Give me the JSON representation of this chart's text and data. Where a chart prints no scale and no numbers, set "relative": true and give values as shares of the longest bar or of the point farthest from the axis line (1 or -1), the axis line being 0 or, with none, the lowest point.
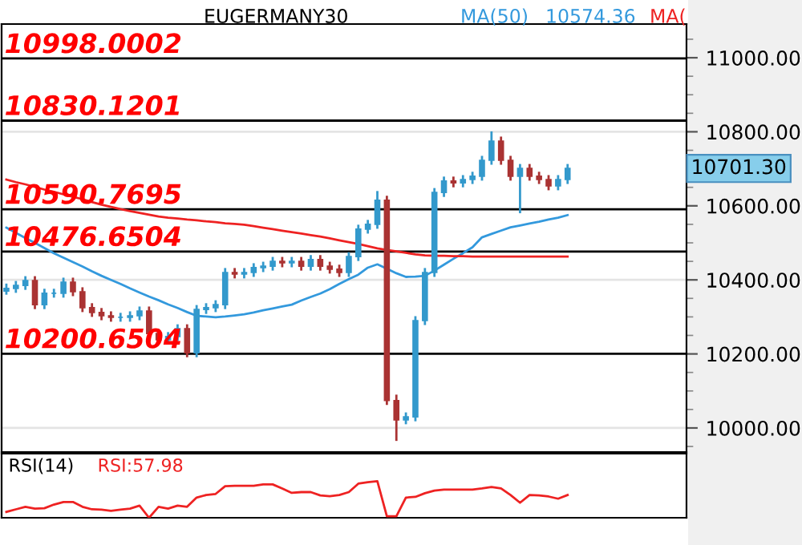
{
  "chart_data": [
    {
      "type": "candlestick",
      "title": "EUGERMANY30",
      "categories": [
        null,
        null,
        null,
        null,
        null,
        null,
        null,
        null,
        null,
        null,
        null,
        null,
        null,
        null,
        null,
        null,
        null,
        null,
        null,
        null,
        null,
        null,
        null,
        null,
        null,
        null,
        null,
        null,
        null,
        null,
        null,
        null,
        null,
        null,
        null,
        null,
        null,
        null,
        null,
        null,
        null,
        null,
        null,
        null,
        null,
        null,
        null,
        null,
        null,
        null,
        null,
        null,
        null,
        null,
        null,
        null,
        null,
        null,
        null,
        null
      ],
      "ohlc": [
        [
          10370,
          10390,
          10360,
          10377
        ],
        [
          10377,
          10397,
          10365,
          10385
        ],
        [
          10385,
          10410,
          10373,
          10398
        ],
        [
          10398,
          10410,
          10321,
          10333
        ],
        [
          10333,
          10376,
          10321,
          10364
        ],
        [
          10364,
          10376,
          10352,
          10364
        ],
        [
          10364,
          10406,
          10352,
          10394
        ],
        [
          10394,
          10406,
          10356,
          10368
        ],
        [
          10368,
          10380,
          10313,
          10325
        ],
        [
          10325,
          10337,
          10300,
          10312
        ],
        [
          10312,
          10324,
          10291,
          10303
        ],
        [
          10303,
          10315,
          10287,
          10299
        ],
        [
          10299,
          10311,
          10287,
          10299
        ],
        [
          10299,
          10315,
          10287,
          10303
        ],
        [
          10303,
          10328,
          10291,
          10316
        ],
        [
          10316,
          10328,
          10243,
          10255
        ],
        [
          10255,
          10267,
          10226,
          10238
        ],
        [
          10238,
          10259,
          10226,
          10247
        ],
        [
          10247,
          10280,
          10235,
          10268
        ],
        [
          10268,
          10280,
          10191,
          10203
        ],
        [
          10203,
          10332,
          10191,
          10320
        ],
        [
          10320,
          10337,
          10308,
          10325
        ],
        [
          10325,
          10345,
          10313,
          10333
        ],
        [
          10333,
          10432,
          10321,
          10420
        ],
        [
          10420,
          10432,
          10404,
          10416
        ],
        [
          10416,
          10432,
          10404,
          10420
        ],
        [
          10420,
          10445,
          10408,
          10433
        ],
        [
          10433,
          10449,
          10421,
          10437
        ],
        [
          10437,
          10462,
          10425,
          10450
        ],
        [
          10450,
          10462,
          10434,
          10446
        ],
        [
          10446,
          10462,
          10434,
          10450
        ],
        [
          10450,
          10462,
          10425,
          10437
        ],
        [
          10437,
          10467,
          10425,
          10455
        ],
        [
          10455,
          10467,
          10425,
          10437
        ],
        [
          10437,
          10449,
          10417,
          10429
        ],
        [
          10429,
          10441,
          10408,
          10420
        ],
        [
          10420,
          10475,
          10408,
          10463
        ],
        [
          10463,
          10549,
          10451,
          10537
        ],
        [
          10537,
          10562,
          10525,
          10550
        ],
        [
          10550,
          10640,
          10538,
          10615
        ],
        [
          10615,
          10627,
          10062,
          10074
        ],
        [
          10074,
          10090,
          9965,
          10022
        ],
        [
          10022,
          10042,
          10010,
          10030
        ],
        [
          10030,
          10302,
          10018,
          10290
        ],
        [
          10290,
          10432,
          10278,
          10420
        ],
        [
          10420,
          10648,
          10408,
          10636
        ],
        [
          10636,
          10679,
          10624,
          10667
        ],
        [
          10667,
          10679,
          10650,
          10662
        ],
        [
          10662,
          10683,
          10650,
          10671
        ],
        [
          10671,
          10692,
          10659,
          10680
        ],
        [
          10680,
          10735,
          10668,
          10723
        ],
        [
          10723,
          10801,
          10711,
          10775
        ],
        [
          10775,
          10787,
          10711,
          10723
        ],
        [
          10723,
          10735,
          10668,
          10680
        ],
        [
          10680,
          10713,
          10580,
          10701
        ],
        [
          10701,
          10713,
          10668,
          10680
        ],
        [
          10680,
          10692,
          10659,
          10671
        ],
        [
          10671,
          10683,
          10642,
          10654
        ],
        [
          10654,
          10683,
          10642,
          10671
        ],
        [
          10671,
          10713,
          10659,
          10701
        ]
      ],
      "colors": [
        "#3399cc",
        "#3399cc",
        "#3399cc",
        "#aa3333",
        "#3399cc",
        "#3399cc",
        "#3399cc",
        "#aa3333",
        "#aa3333",
        "#aa3333",
        "#aa3333",
        "#aa3333",
        "#3399cc",
        "#3399cc",
        "#3399cc",
        "#aa3333",
        "#aa3333",
        "#3399cc",
        "#3399cc",
        "#aa3333",
        "#3399cc",
        "#3399cc",
        "#3399cc",
        "#3399cc",
        "#aa3333",
        "#3399cc",
        "#3399cc",
        "#3399cc",
        "#3399cc",
        "#aa3333",
        "#3399cc",
        "#aa3333",
        "#3399cc",
        "#aa3333",
        "#aa3333",
        "#aa3333",
        "#3399cc",
        "#3399cc",
        "#3399cc",
        "#3399cc",
        "#aa3333",
        "#aa3333",
        "#3399cc",
        "#3399cc",
        "#3399cc",
        "#3399cc",
        "#3399cc",
        "#aa3333",
        "#3399cc",
        "#3399cc",
        "#3399cc",
        "#3399cc",
        "#aa3333",
        "#aa3333",
        "#3399cc",
        "#aa3333",
        "#aa3333",
        "#aa3333",
        "#3399cc",
        "#3399cc"
      ],
      "series": [
        {
          "name": "MA(50)",
          "type": "line",
          "color": "#3399dd",
          "values": [
            10541,
            10527,
            10513,
            10500,
            10486,
            10472,
            10460,
            10448,
            10436,
            10423,
            10411,
            10400,
            10389,
            10377,
            10366,
            10355,
            10345,
            10334,
            10324,
            10313,
            10303,
            10301,
            10299,
            10301,
            10304,
            10307,
            10312,
            10318,
            10323,
            10328,
            10333,
            10344,
            10354,
            10363,
            10375,
            10389,
            10402,
            10414,
            10433,
            10442,
            10430,
            10418,
            10408,
            10409,
            10411,
            10425,
            10441,
            10457,
            10472,
            10488,
            10515,
            10524,
            10533,
            10542,
            10547,
            10552,
            10557,
            10563,
            10568,
            10575
          ]
        },
        {
          "name": "MA(",
          "type": "line",
          "color": "#ee2222",
          "values": [
            10671,
            10664,
            10658,
            10651,
            10644,
            10638,
            10631,
            10624,
            10618,
            10610,
            10603,
            10597,
            10591,
            10586,
            10581,
            10576,
            10571,
            10568,
            10566,
            10563,
            10561,
            10558,
            10556,
            10553,
            10551,
            10549,
            10545,
            10541,
            10537,
            10533,
            10529,
            10525,
            10521,
            10517,
            10512,
            10507,
            10502,
            10497,
            10491,
            10485,
            10481,
            10477,
            10473,
            10469,
            10466,
            10465,
            10465,
            10464,
            10464,
            10463,
            10463,
            10463,
            10463,
            10463,
            10463,
            10463,
            10463,
            10463,
            10463,
            10463
          ]
        }
      ],
      "annotations": [
        "10574.36",
        "10701.30"
      ],
      "ref_lines": [
        {
          "axis": "y",
          "value": 10998.0002,
          "label": "10998.0002",
          "color": "#000000"
        },
        {
          "axis": "y",
          "value": 10830.1201,
          "label": "10830.1201",
          "color": "#000000"
        },
        {
          "axis": "y",
          "value": 10590.7695,
          "label": "10590.7695",
          "color": "#000000"
        },
        {
          "axis": "y",
          "value": 10476.6504,
          "label": "10476.6504",
          "color": "#000000"
        },
        {
          "axis": "y",
          "value": 10200.6504,
          "label": "10200.6504",
          "color": "#000000"
        }
      ],
      "ylim": [
        9935,
        11091
      ],
      "yticks": [
        {
          "value": 10000,
          "label": "10000.00"
        },
        {
          "value": 10200,
          "label": "10200.00"
        },
        {
          "value": 10400,
          "label": "10400.00"
        },
        {
          "value": 10600,
          "label": "10600.00"
        },
        {
          "value": 10800,
          "label": "10800.00"
        },
        {
          "value": 11000,
          "label": "11000.00"
        }
      ],
      "grid": "y",
      "tick_labels": "y"
    },
    {
      "type": "line",
      "title": "RSI(14)",
      "annotations": [
        "RSI:57.98"
      ],
      "relative": true,
      "tick_labels": false,
      "categories": [
        null,
        null,
        null,
        null,
        null,
        null,
        null,
        null,
        null,
        null,
        null,
        null,
        null,
        null,
        null,
        null,
        null,
        null,
        null,
        null,
        null,
        null,
        null,
        null,
        null,
        null,
        null,
        null,
        null,
        null,
        null,
        null,
        null,
        null,
        null,
        null,
        null,
        null,
        null,
        null,
        null,
        null,
        null,
        null,
        null,
        null,
        null,
        null,
        null,
        null,
        null,
        null,
        null,
        null,
        null,
        null,
        null,
        null,
        null,
        null
      ],
      "series": [
        {
          "color": "#ee2222",
          "values": [
            0.16,
            0.23,
            0.3,
            0.25,
            0.26,
            0.36,
            0.43,
            0.43,
            0.3,
            0.23,
            0.22,
            0.19,
            0.22,
            0.25,
            0.33,
            0,
            0.3,
            0.25,
            0.33,
            0.3,
            0.55,
            0.62,
            0.65,
            0.86,
            0.87,
            0.87,
            0.87,
            0.91,
            0.91,
            0.8,
            0.68,
            0.7,
            0.7,
            0.61,
            0.59,
            0.62,
            0.7,
            0.93,
            0.97,
            1,
            0.04,
            0.04,
            0.55,
            0.57,
            0.67,
            0.74,
            0.77,
            0.77,
            0.77,
            0.77,
            0.8,
            0.84,
            0.8,
            0.62,
            0.41,
            0.62,
            0.61,
            0.58,
            0.52,
            0.62
          ]
        }
      ]
    }
  ]
}
